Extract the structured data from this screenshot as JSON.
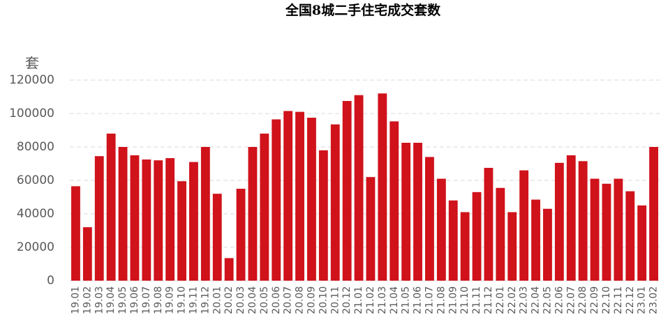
{
  "chart_data": {
    "type": "bar",
    "title": "全国8城二手住宅成交套数",
    "y_label": "套",
    "categories": [
      "19.01",
      "19.02",
      "19.03",
      "19.04",
      "19.05",
      "19.06",
      "19.07",
      "19.08",
      "19.09",
      "19.10",
      "19.11",
      "19.12",
      "20.01",
      "20.02",
      "20.03",
      "20.04",
      "20.05",
      "20.06",
      "20.07",
      "20.08",
      "20.09",
      "20.10",
      "20.11",
      "20.12",
      "21.01",
      "21.02",
      "21.03",
      "21.04",
      "21.05",
      "21.06",
      "21.07",
      "21.08",
      "21.09",
      "21.10",
      "21.11",
      "21.12",
      "22.01",
      "22.02",
      "22.03",
      "22.04",
      "22.05",
      "22.06",
      "22.07",
      "22.08",
      "22.09",
      "22.10",
      "22.11",
      "22.12",
      "23.01",
      "23.02"
    ],
    "values": [
      56500,
      32000,
      74500,
      88000,
      80000,
      75000,
      72500,
      72000,
      73300,
      59500,
      71000,
      80000,
      52000,
      13500,
      55000,
      80000,
      88000,
      96500,
      101500,
      101000,
      97500,
      78000,
      93500,
      107500,
      111000,
      62000,
      112000,
      95300,
      82500,
      82500,
      74000,
      61000,
      48000,
      41000,
      53000,
      67500,
      55500,
      41000,
      66000,
      48500,
      43000,
      70500,
      75000,
      71500,
      61000,
      58000,
      61000,
      53500,
      45000,
      80000
    ],
    "color": "#d0121b",
    "ylim": [
      0,
      120000
    ],
    "yticks": [
      0,
      20000,
      40000,
      60000,
      80000,
      100000,
      120000
    ],
    "grid": true
  }
}
